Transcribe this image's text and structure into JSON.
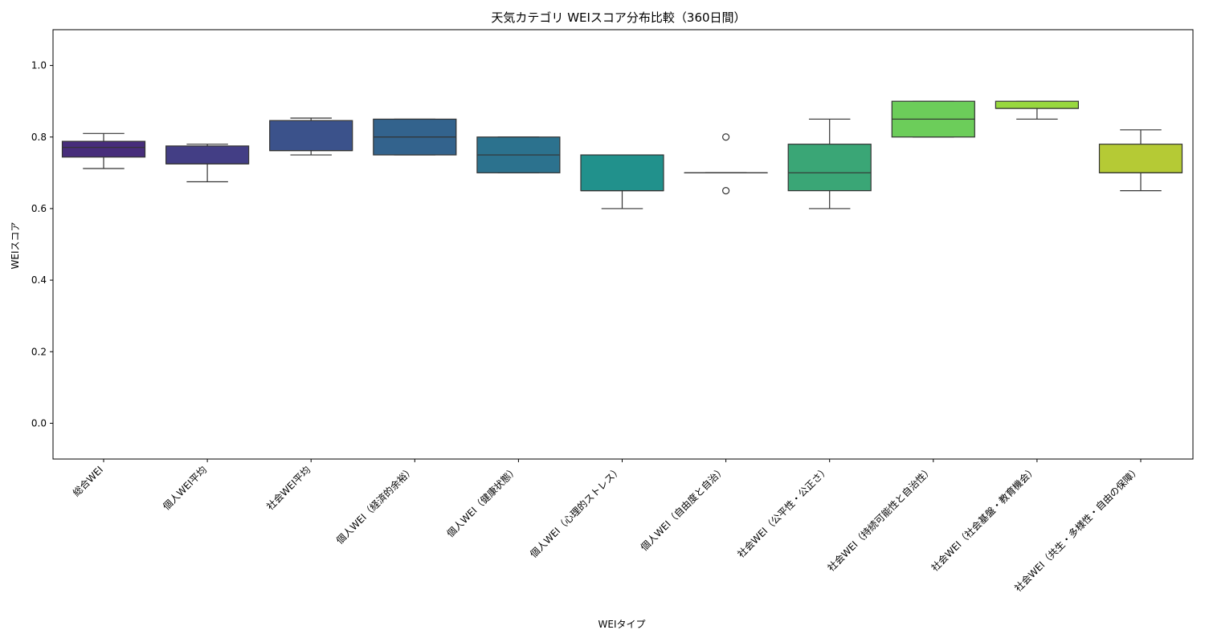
{
  "chart_data": {
    "type": "box",
    "title": "天気カテゴリ WEIスコア分布比較（360日間）",
    "xlabel": "WEIタイプ",
    "ylabel": "WEIスコア",
    "ylim": [
      -0.1,
      1.1
    ],
    "yticks": [
      "0.0",
      "0.2",
      "0.4",
      "0.6",
      "0.8",
      "1.0"
    ],
    "grid": false,
    "categories": [
      "総合WEI",
      "個人WEI平均",
      "社会WEI平均",
      "個人WEI（経済的余裕）",
      "個人WEI（健康状態）",
      "個人WEI（心理的ストレス）",
      "個人WEI（自由度と自治）",
      "社会WEI（公平性・公正さ）",
      "社会WEI（持続可能性と自治性）",
      "社会WEI（社会基盤・教育機会）",
      "社会WEI（共生・多様性・自由の保障）"
    ],
    "boxes": [
      {
        "whisker_low": 0.712,
        "q1": 0.744,
        "median": 0.771,
        "q3": 0.788,
        "whisker_high": 0.81,
        "outliers": [],
        "color": "#472d7b"
      },
      {
        "whisker_low": 0.675,
        "q1": 0.725,
        "median": 0.725,
        "q3": 0.775,
        "whisker_high": 0.78,
        "outliers": [],
        "color": "#433e85"
      },
      {
        "whisker_low": 0.75,
        "q1": 0.762,
        "median": 0.762,
        "q3": 0.846,
        "whisker_high": 0.853,
        "outliers": [],
        "color": "#3b528b"
      },
      {
        "whisker_low": 0.75,
        "q1": 0.75,
        "median": 0.8,
        "q3": 0.85,
        "whisker_high": 0.85,
        "outliers": [],
        "color": "#33638d"
      },
      {
        "whisker_low": 0.7,
        "q1": 0.7,
        "median": 0.75,
        "q3": 0.8,
        "whisker_high": 0.8,
        "outliers": [],
        "color": "#2c728e"
      },
      {
        "whisker_low": 0.6,
        "q1": 0.65,
        "median": 0.65,
        "q3": 0.75,
        "whisker_high": 0.75,
        "outliers": [],
        "color": "#21918c"
      },
      {
        "whisker_low": 0.7,
        "q1": 0.7,
        "median": 0.7,
        "q3": 0.7,
        "whisker_high": 0.7,
        "outliers": [
          0.8,
          0.65
        ],
        "color": "#28ae80"
      },
      {
        "whisker_low": 0.6,
        "q1": 0.65,
        "median": 0.7,
        "q3": 0.78,
        "whisker_high": 0.85,
        "outliers": [],
        "color": "#3aa676"
      },
      {
        "whisker_low": 0.8,
        "q1": 0.8,
        "median": 0.85,
        "q3": 0.9,
        "whisker_high": 0.9,
        "outliers": [],
        "color": "#6ccd5a"
      },
      {
        "whisker_low": 0.85,
        "q1": 0.88,
        "median": 0.88,
        "q3": 0.9,
        "whisker_high": 0.9,
        "outliers": [],
        "color": "#98d83e"
      },
      {
        "whisker_low": 0.65,
        "q1": 0.7,
        "median": 0.7,
        "q3": 0.78,
        "whisker_high": 0.82,
        "outliers": [],
        "color": "#b5ca35"
      }
    ]
  }
}
